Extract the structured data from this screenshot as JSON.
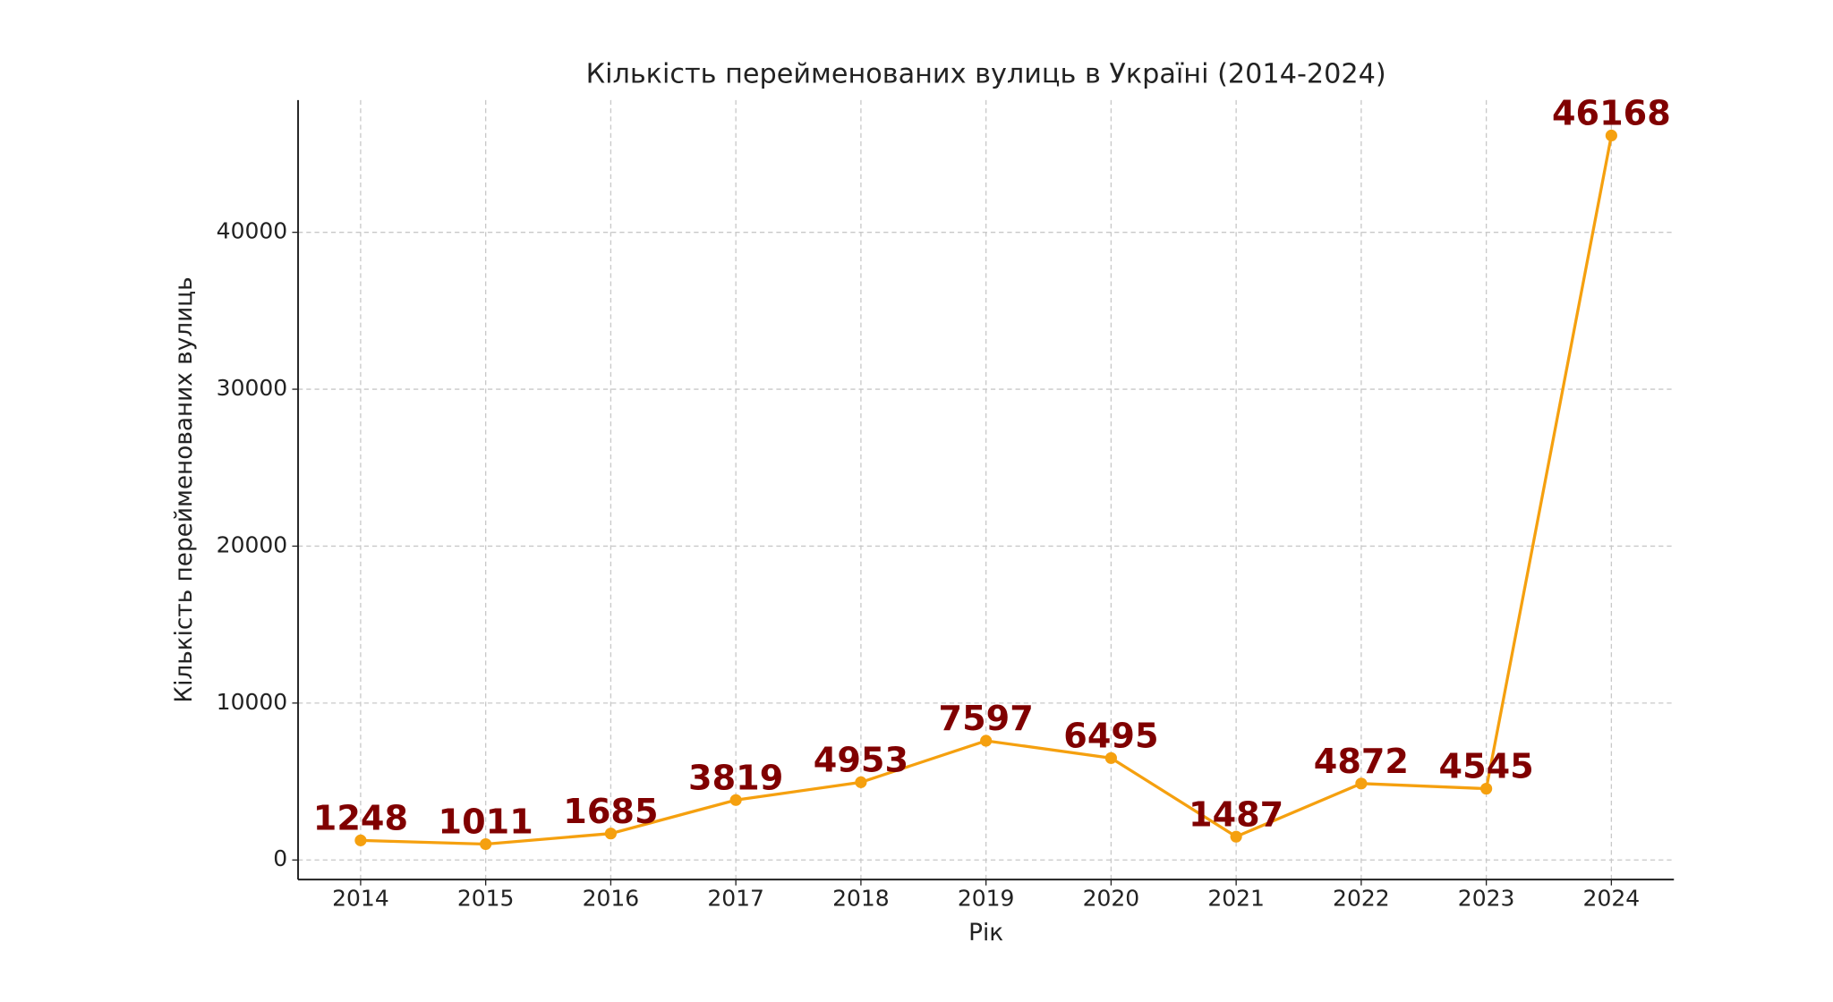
{
  "chart_data": {
    "type": "line",
    "title": "Кількість перейменованих вулиць в Україні (2014-2024)",
    "x_label": "Рік",
    "y_label": "Кількість перейменованих вулиць",
    "x": [
      2014,
      2015,
      2016,
      2017,
      2018,
      2019,
      2020,
      2021,
      2022,
      2023,
      2024
    ],
    "series": [
      {
        "color": "#f5a00f",
        "values": [
          1248,
          1011,
          1685,
          3819,
          4953,
          7597,
          6495,
          1487,
          4872,
          4545,
          46168
        ]
      }
    ],
    "label_color": "#800000",
    "xlim": [
      2013.5,
      2024.5
    ],
    "xticks": [
      2014,
      2015,
      2016,
      2017,
      2018,
      2019,
      2020,
      2021,
      2022,
      2023,
      2024
    ],
    "ylim": [
      -1247,
      48426
    ],
    "yticks": [
      0,
      10000,
      20000,
      30000,
      40000
    ],
    "grid": true
  }
}
